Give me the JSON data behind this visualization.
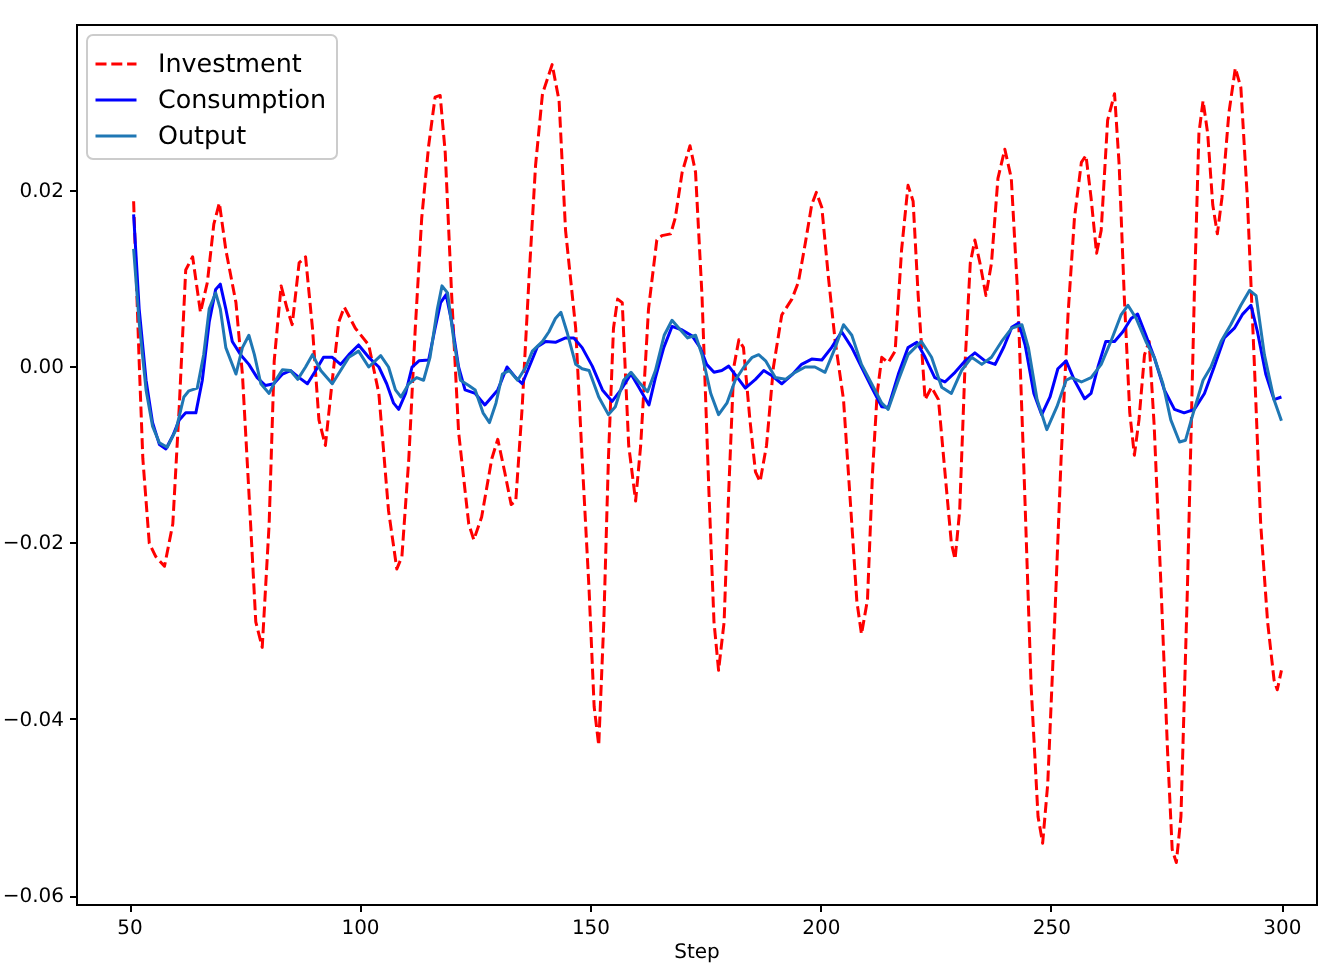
{
  "chart_data": {
    "type": "line",
    "xlabel": "Step",
    "xlim": [
      38.5,
      307.5
    ],
    "ylim": [
      -0.061,
      0.0388
    ],
    "xticks": [
      50,
      100,
      150,
      200,
      250,
      300
    ],
    "yticks": [
      {
        "value": -0.06,
        "label": "−0.06"
      },
      {
        "value": -0.04,
        "label": "−0.04"
      },
      {
        "value": -0.02,
        "label": "−0.02"
      },
      {
        "value": 0,
        "label": "0.00"
      },
      0.02
    ],
    "legend": "top left",
    "series": [
      {
        "name": "Investment",
        "color": "#ff0000",
        "line_style": "dashed",
        "x": [
          51,
          52.2,
          53,
          54.4,
          55.8,
          57.7,
          59.5,
          60.9,
          62.3,
          63.8,
          65.5,
          67,
          68.4,
          69.6,
          71,
          73.2,
          74.6,
          76,
          77.5,
          78.9,
          80.4,
          81.5,
          83,
          84.3,
          85.4,
          86.9,
          88.3,
          89.8,
          91.2,
          92.6,
          94.1,
          95.5,
          96.7,
          99.1,
          102,
          104.2,
          106.3,
          108.1,
          109.2,
          110.7,
          112.1,
          113.5,
          115,
          116.4,
          117.5,
          118.6,
          120,
          121.5,
          123.7,
          124.8,
          126.5,
          128.7,
          130,
          131.5,
          132.9,
          133.9,
          135.3,
          136.8,
          138.2,
          139.7,
          141.8,
          143.3,
          144.7,
          146.9,
          148.3,
          149.8,
          150.9,
          151.9,
          153,
          154,
          155.1,
          156,
          157,
          158.4,
          159.9,
          161,
          162.7,
          164.5,
          165.6,
          167.5,
          168.5,
          170,
          171.7,
          172.9,
          174.3,
          175.8,
          176.9,
          177.9,
          179.1,
          180.1,
          181.2,
          182.3,
          183.3,
          184.7,
          185.9,
          186.9,
          188.3,
          189.8,
          191.6,
          193.8,
          195.2,
          196.7,
          198.1,
          199.1,
          200.3,
          201.7,
          203.2,
          205,
          206.8,
          207.9,
          208.9,
          210.2,
          211.3,
          212.3,
          213.3,
          214.7,
          216.2,
          217.6,
          219,
          220.1,
          221.2,
          222.7,
          224.1,
          225.6,
          227,
          228.4,
          229.2,
          230.2,
          231.4,
          232.5,
          233.5,
          234.6,
          235.9,
          237.1,
          238.5,
          240,
          241.4,
          242.8,
          244.3,
          245.7,
          247.2,
          248.2,
          249.3,
          250.8,
          252.2,
          253.7,
          255.1,
          256.6,
          257.6,
          258.7,
          259.9,
          260.9,
          262.3,
          263.8,
          264.8,
          265.9,
          267.1,
          268.1,
          269.1,
          270.3,
          271.3,
          272.4,
          273.9,
          275.3,
          276.3,
          277.2,
          278.2,
          279.6,
          281.1,
          282.1,
          283,
          284,
          285.1,
          286.1,
          287.1,
          288.6,
          290,
          291.2,
          292.6,
          294.1,
          295.5,
          297,
          298.4,
          299.1,
          300
        ],
        "values": [
          0.0187,
          0.0006,
          -0.0105,
          -0.0201,
          -0.0216,
          -0.0227,
          -0.0179,
          -0.0046,
          0.0109,
          0.0124,
          0.0061,
          0.0095,
          0.0161,
          0.0185,
          0.0132,
          0.0072,
          -0.0009,
          -0.0142,
          -0.029,
          -0.0319,
          -0.0179,
          0.0006,
          0.0091,
          0.0065,
          0.0047,
          0.0117,
          0.0124,
          0.0043,
          -0.0061,
          -0.009,
          -0.0016,
          0.005,
          0.0067,
          0.0043,
          0.0024,
          -0.0031,
          -0.0164,
          -0.023,
          -0.0216,
          -0.0105,
          0.0043,
          0.0168,
          0.025,
          0.0305,
          0.0307,
          0.0242,
          0.008,
          -0.0075,
          -0.0179,
          -0.0197,
          -0.0171,
          -0.0105,
          -0.0083,
          -0.012,
          -0.0157,
          -0.0153,
          -0.0046,
          0.0102,
          0.0228,
          0.0309,
          0.0342,
          0.0301,
          0.0154,
          0.0043,
          -0.0105,
          -0.0253,
          -0.0386,
          -0.043,
          -0.029,
          -0.0105,
          0.0043,
          0.0076,
          0.0072,
          -0.009,
          -0.0153,
          -0.009,
          0.0065,
          0.0143,
          0.0148,
          0.015,
          0.0168,
          0.022,
          0.025,
          0.022,
          0.008,
          -0.0142,
          -0.029,
          -0.0345,
          -0.029,
          -0.0142,
          -0.0001,
          0.003,
          0.0021,
          -0.0061,
          -0.012,
          -0.0131,
          -0.009,
          -0.0001,
          0.0058,
          0.0076,
          0.0095,
          0.0139,
          0.0183,
          0.0197,
          0.018,
          0.0102,
          0.0028,
          -0.0038,
          -0.0179,
          -0.0267,
          -0.0304,
          -0.0265,
          -0.012,
          -0.0031,
          0.001,
          0.0004,
          0.0017,
          0.0132,
          0.0205,
          0.0187,
          0.008,
          -0.0038,
          -0.0024,
          -0.0038,
          -0.012,
          -0.0201,
          -0.0219,
          -0.0164,
          0.0006,
          0.0117,
          0.0143,
          0.0117,
          0.008,
          0.0117,
          0.0213,
          0.0246,
          0.0213,
          0.008,
          -0.0142,
          -0.0363,
          -0.0511,
          -0.0541,
          -0.0474,
          -0.029,
          -0.0105,
          0.0058,
          0.0168,
          0.0231,
          0.0239,
          0.0191,
          0.0128,
          0.0154,
          0.0279,
          0.0309,
          0.0228,
          0.008,
          -0.0053,
          -0.0101,
          -0.0061,
          0.0013,
          0.0028,
          -0.0068,
          -0.0253,
          -0.0437,
          -0.0548,
          -0.0563,
          -0.0511,
          -0.0253,
          0.008,
          0.0264,
          0.0301,
          0.0264,
          0.0183,
          0.015,
          0.0191,
          0.0287,
          0.0338,
          0.0316,
          0.0191,
          0.0006,
          -0.0179,
          -0.029,
          -0.0356,
          -0.0367,
          -0.0345
        ]
      },
      {
        "name": "Consumption",
        "color": "#0000ff",
        "line_style": "solid",
        "x": [
          51,
          52.2,
          53.7,
          55.1,
          56.6,
          58,
          59.5,
          60.9,
          62.3,
          64.5,
          65.9,
          67.4,
          68.8,
          69.8,
          71,
          72.4,
          74.2,
          76,
          77.8,
          79.6,
          81.4,
          83.3,
          85,
          86.9,
          88.7,
          90.5,
          92.2,
          94.1,
          95.9,
          97.7,
          99.8,
          102,
          104.2,
          105.9,
          107.4,
          108.5,
          110,
          111.4,
          112.9,
          115,
          116.4,
          117.6,
          118.8,
          120,
          121.5,
          122.9,
          125.1,
          127.2,
          128.7,
          130,
          132,
          133.9,
          135.3,
          136.8,
          138.6,
          140.4,
          142.5,
          144.7,
          146.5,
          148.3,
          150.5,
          152.7,
          154.8,
          156.7,
          158.9,
          160.6,
          162.8,
          164.2,
          166,
          167.8,
          170,
          172.2,
          173.9,
          175.3,
          176.9,
          178.6,
          180.1,
          182,
          183.7,
          185.9,
          187.7,
          189.5,
          191.6,
          193.8,
          195.9,
          198.1,
          200.3,
          202.4,
          204.6,
          206.8,
          208.9,
          211.1,
          213.3,
          214.7,
          216.9,
          219,
          220.9,
          222.7,
          224.8,
          227,
          229.2,
          231.4,
          233.5,
          235.7,
          237.9,
          239.8,
          241.5,
          243,
          244.4,
          246.3,
          248,
          249.8,
          251.5,
          253.3,
          255.1,
          257.3,
          258.7,
          260.2,
          261.9,
          263.8,
          265.6,
          267.4,
          268.8,
          270.6,
          272.4,
          274.6,
          276.8,
          278.9,
          281.1,
          283.3,
          285.4,
          287.6,
          289.8,
          291.6,
          293.4,
          294.8,
          296.6,
          298.4,
          300
        ],
        "values": [
          0.0172,
          0.0065,
          -0.0016,
          -0.0064,
          -0.0089,
          -0.0094,
          -0.0079,
          -0.0061,
          -0.0053,
          -0.0053,
          -0.0016,
          0.005,
          0.0087,
          0.0093,
          0.0065,
          0.0028,
          0.0013,
          0.0002,
          -0.0013,
          -0.0022,
          -0.002,
          -0.0009,
          -0.0005,
          -0.0013,
          -0.002,
          -0.0005,
          0.001,
          0.001,
          0.0002,
          0.0013,
          0.0024,
          0.001,
          -0.0001,
          -0.002,
          -0.0042,
          -0.0049,
          -0.0031,
          -0.0001,
          0.0006,
          0.0007,
          0.0043,
          0.0072,
          0.0081,
          0.005,
          -0.0001,
          -0.0027,
          -0.0031,
          -0.0044,
          -0.0035,
          -0.0027,
          -0.0001,
          -0.0013,
          -0.002,
          -0.0001,
          0.0022,
          0.0028,
          0.0027,
          0.0032,
          0.0032,
          0.0021,
          0,
          -0.0027,
          -0.004,
          -0.0027,
          -0.0009,
          -0.0024,
          -0.0044,
          -0.0013,
          0.0021,
          0.0045,
          0.0041,
          0.0034,
          0.0021,
          0.0002,
          -0.0007,
          -0.0005,
          0,
          -0.0013,
          -0.0025,
          -0.0015,
          -0.0005,
          -0.0011,
          -0.002,
          -0.001,
          0.0002,
          0.0008,
          0.0007,
          0.0021,
          0.0039,
          0.0021,
          -0.0001,
          -0.0024,
          -0.0046,
          -0.0047,
          -0.0009,
          0.0021,
          0.0027,
          0.001,
          -0.0013,
          -0.0018,
          -0.0007,
          0.0006,
          0.0015,
          0.0006,
          0.0002,
          0.0022,
          0.0044,
          0.0049,
          0.0024,
          -0.0031,
          -0.0055,
          -0.0035,
          -0.0003,
          0.0006,
          -0.0016,
          -0.0037,
          -0.0031,
          -0.0001,
          0.0028,
          0.0028,
          0.0039,
          0.0054,
          0.0059,
          0.0035,
          0.001,
          -0.0027,
          -0.0049,
          -0.0053,
          -0.0049,
          -0.0031,
          -0.0001,
          0.0032,
          0.0043,
          0.0059,
          0.0069,
          0.0039,
          -0.0009,
          -0.0038,
          -0.0035
        ]
      },
      {
        "name": "Output",
        "color": "#1f77b4",
        "line_style": "solid",
        "x": [
          51,
          52.2,
          53.7,
          55.1,
          56.6,
          58.3,
          60.2,
          61.9,
          63,
          64.8,
          66.2,
          67.4,
          68.8,
          69.8,
          71,
          73.2,
          74.6,
          76,
          77.2,
          78.6,
          80.4,
          81.8,
          83.3,
          85,
          86.6,
          88.3,
          89.8,
          91.6,
          94.1,
          95.9,
          97.7,
          99.8,
          102,
          104.6,
          106.3,
          107.8,
          109,
          110.7,
          112.4,
          113.9,
          115.3,
          116.9,
          117.9,
          119.1,
          120.5,
          121.9,
          123.7,
          125.1,
          126.8,
          128.2,
          129.6,
          131,
          132.5,
          134.3,
          136.1,
          137.5,
          139.7,
          141.1,
          142.5,
          143.7,
          145,
          146.9,
          148.3,
          149.8,
          151.9,
          154,
          155.5,
          157.3,
          158.9,
          160.6,
          162.5,
          164.2,
          166.1,
          167.8,
          169.3,
          171.2,
          172.9,
          174.3,
          176.2,
          177.9,
          179.7,
          181.5,
          183.4,
          185.2,
          186.6,
          188.1,
          190.2,
          192.4,
          194.5,
          196.7,
          198.8,
          201,
          203.2,
          205,
          206.8,
          208.9,
          211.1,
          213.3,
          214.7,
          216.9,
          219,
          221.9,
          224.1,
          226.3,
          228.4,
          230.6,
          232.8,
          235,
          237.1,
          239.3,
          241.5,
          243.7,
          245.1,
          247,
          249.1,
          251.3,
          253.3,
          254.4,
          256.6,
          258.7,
          260.9,
          263,
          265.2,
          266.7,
          268.5,
          270.6,
          272.4,
          274.3,
          276,
          277.9,
          279.2,
          281.1,
          283,
          284.7,
          286.9,
          289,
          291.2,
          293.1,
          294.5,
          296.3,
          298.4,
          300
        ],
        "values": [
          0.0133,
          0.005,
          -0.0027,
          -0.0068,
          -0.0087,
          -0.0092,
          -0.0072,
          -0.0035,
          -0.0028,
          -0.0025,
          0.0013,
          0.0065,
          0.0083,
          0.0065,
          0.0021,
          -0.0009,
          0.0021,
          0.0035,
          0.0013,
          -0.002,
          -0.0031,
          -0.0016,
          -0.0004,
          -0.0005,
          -0.0015,
          -0.0001,
          0.0013,
          -0.0005,
          -0.002,
          -0.0005,
          0.001,
          0.0017,
          -0.0001,
          0.0012,
          -0.0001,
          -0.0027,
          -0.0035,
          -0.002,
          -0.0013,
          -0.0016,
          0.001,
          0.0065,
          0.0091,
          0.0083,
          0.0028,
          -0.0016,
          -0.0022,
          -0.0027,
          -0.0053,
          -0.0064,
          -0.0042,
          -0.0009,
          -0.0005,
          -0.0016,
          -0.0001,
          0.0017,
          0.0028,
          0.0039,
          0.0054,
          0.0061,
          0.0039,
          0.0002,
          -0.0003,
          -0.0005,
          -0.0035,
          -0.0055,
          -0.0046,
          -0.0016,
          -0.0007,
          -0.0018,
          -0.0029,
          -0.0005,
          0.0035,
          0.0052,
          0.0043,
          0.0032,
          0.0035,
          0.0013,
          -0.0031,
          -0.0055,
          -0.0042,
          -0.0016,
          -0.0001,
          0.001,
          0.0013,
          0.0006,
          -0.0013,
          -0.0015,
          -0.0007,
          -0.0001,
          -0.0001,
          -0.0007,
          0.0021,
          0.0047,
          0.0035,
          0.0002,
          -0.002,
          -0.0042,
          -0.0049,
          -0.0016,
          0.0013,
          0.0028,
          0.001,
          -0.0024,
          -0.0031,
          -0.0005,
          0.001,
          0.0002,
          0.001,
          0.0028,
          0.0043,
          0.0047,
          0.0021,
          -0.0038,
          -0.0072,
          -0.0046,
          -0.0016,
          -0.0013,
          -0.0018,
          -0.0013,
          0.0002,
          0.0028,
          0.0058,
          0.0069,
          0.0054,
          0.0028,
          0.001,
          -0.002,
          -0.0061,
          -0.0086,
          -0.0084,
          -0.0049,
          -0.0016,
          -0.0001,
          0.0028,
          0.0047,
          0.0069,
          0.0086,
          0.008,
          0.0013,
          -0.0038,
          -0.0062
        ]
      }
    ]
  }
}
